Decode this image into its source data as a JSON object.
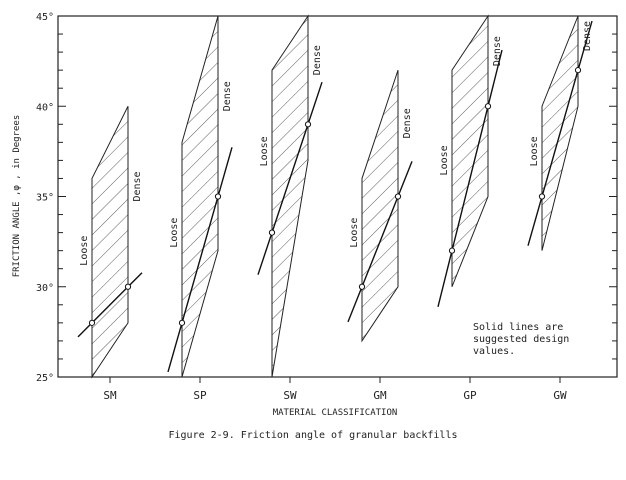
{
  "chart_data": {
    "type": "scatter",
    "xlabel": "MATERIAL CLASSIFICATION",
    "ylabel": "FRICTION ANGLE ,φ , in Degrees",
    "ylim": [
      25,
      45
    ],
    "yticks": [
      "25°",
      "30°",
      "35°",
      "40°",
      "45°"
    ],
    "categories": [
      "SM",
      "SP",
      "SW",
      "GM",
      "GP",
      "GW"
    ],
    "band_labels": {
      "loose": "Loose",
      "dense": "Dense"
    },
    "bands": [
      {
        "category": "SM",
        "loose_range": [
          25,
          36
        ],
        "dense_range": [
          28,
          40
        ],
        "design_line": {
          "loose": 28,
          "dense": 30
        }
      },
      {
        "category": "SP",
        "loose_range": [
          25,
          38
        ],
        "dense_range": [
          32,
          45
        ],
        "design_line": {
          "loose": 28,
          "dense": 35
        }
      },
      {
        "category": "SW",
        "loose_range": [
          25,
          42
        ],
        "dense_range": [
          37,
          45
        ],
        "design_line": {
          "loose": 33,
          "dense": 39
        }
      },
      {
        "category": "GM",
        "loose_range": [
          27,
          36
        ],
        "dense_range": [
          30,
          42
        ],
        "design_line": {
          "loose": 30,
          "dense": 35
        }
      },
      {
        "category": "GP",
        "loose_range": [
          30,
          42
        ],
        "dense_range": [
          35,
          45
        ],
        "design_line": {
          "loose": 32,
          "dense": 40
        }
      },
      {
        "category": "GW",
        "loose_range": [
          32,
          40
        ],
        "dense_range": [
          40,
          45
        ],
        "design_line": {
          "loose": 35,
          "dense": 42
        }
      }
    ],
    "annotation": [
      "Solid lines are",
      "suggested design",
      "values."
    ],
    "grid": false
  },
  "caption": "Figure 2-9.  Friction angle of granular backfills"
}
